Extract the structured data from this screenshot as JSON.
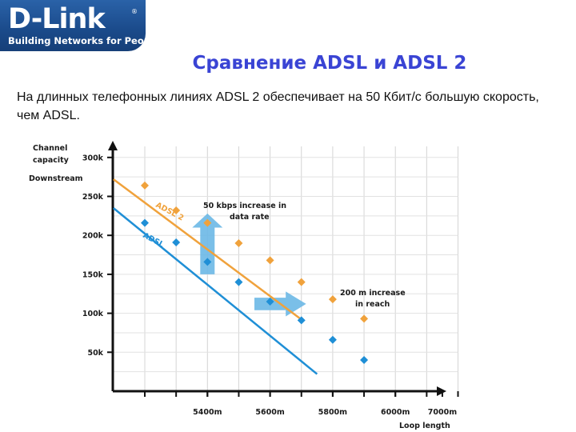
{
  "brand": {
    "logo_text": "D-Link",
    "registered": "®",
    "tagline": "Building Networks for People"
  },
  "slide": {
    "title": "Сравнение ADSL и ADSL 2",
    "intro": "На длинных телефонных линиях  ADSL 2 обеспечивает на 50 Кбит/с большую скорость, чем ADSL."
  },
  "colors": {
    "brand_blue": "#1a4a8a",
    "title_blue": "#3a44d4",
    "adsl2": "#f0a23c",
    "adsl": "#1f8fd6",
    "arrow": "#6cb8e6"
  },
  "chart_data": {
    "type": "line",
    "ylabel_lines": [
      "Channel",
      "capacity"
    ],
    "ylabel_sub": "Downstream",
    "xlabel": "Loop length",
    "y_ticks": [
      {
        "value": 50,
        "label": "50k"
      },
      {
        "value": 100,
        "label": "100k"
      },
      {
        "value": 150,
        "label": "150k"
      },
      {
        "value": 200,
        "label": "200k"
      },
      {
        "value": 250,
        "label": "250k"
      },
      {
        "value": 300,
        "label": "300k"
      }
    ],
    "x_ticks": [
      {
        "value": 5400,
        "label": "5400m"
      },
      {
        "value": 5600,
        "label": "5600m"
      },
      {
        "value": 5800,
        "label": "5800m"
      },
      {
        "value": 6000,
        "label": "6000m"
      },
      {
        "value": 7000,
        "label": "7000m"
      }
    ],
    "series": [
      {
        "name": "ADSL 2",
        "color": "#f0a23c",
        "line": [
          [
            5100,
            272
          ],
          [
            5700,
            92
          ]
        ],
        "points": [
          [
            5200,
            264
          ],
          [
            5300,
            232
          ],
          [
            5400,
            216
          ],
          [
            5500,
            190
          ],
          [
            5600,
            168
          ],
          [
            5700,
            140
          ],
          [
            5800,
            118
          ],
          [
            5900,
            93
          ]
        ]
      },
      {
        "name": "ADSL",
        "color": "#1f8fd6",
        "line": [
          [
            5100,
            235
          ],
          [
            5750,
            22
          ]
        ],
        "points": [
          [
            5200,
            216
          ],
          [
            5300,
            191
          ],
          [
            5400,
            166
          ],
          [
            5500,
            140
          ],
          [
            5600,
            115
          ],
          [
            5700,
            91
          ],
          [
            5800,
            66
          ],
          [
            5900,
            40
          ]
        ]
      }
    ],
    "annotations": [
      {
        "lines": [
          "50 kbps increase in",
          "data rate"
        ],
        "direction": "up"
      },
      {
        "lines": [
          "200 m increase",
          "in reach"
        ],
        "direction": "right"
      }
    ],
    "grid": true
  }
}
